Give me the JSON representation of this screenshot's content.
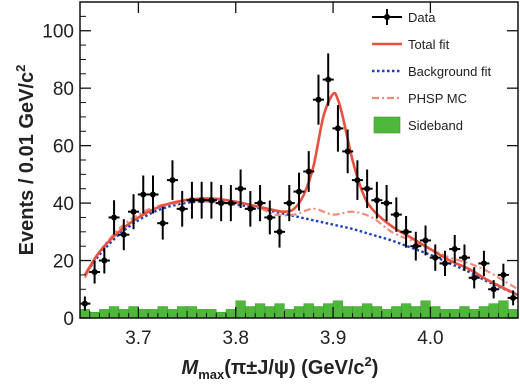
{
  "chart_data": {
    "type": "scatter",
    "xlabel_main": "M",
    "xlabel_sub": "max",
    "xlabel_rest": "(π±J/ψ) (GeV/c",
    "xlabel_sup": "2",
    "xlabel_close": ")",
    "ylabel_main": "Events / 0.01 GeV/c",
    "ylabel_sup": "2",
    "xlim": [
      3.64,
      4.09
    ],
    "ylim": [
      0,
      110
    ],
    "x_ticks": [
      3.7,
      3.8,
      3.9,
      4.0
    ],
    "x_tick_labels": [
      "3.7",
      "3.8",
      "3.9",
      "4.0"
    ],
    "y_ticks": [
      0,
      20,
      40,
      60,
      80,
      100
    ],
    "y_tick_labels": [
      "0",
      "20",
      "40",
      "60",
      "80",
      "100"
    ],
    "legend": {
      "placement": "top-right",
      "entries": [
        {
          "label": "Data",
          "style": "marker",
          "color": "#000000"
        },
        {
          "label": "Total fit",
          "style": "solid",
          "color": "#e8513f"
        },
        {
          "label": "Background fit",
          "style": "dotted",
          "color": "#1a3fbf"
        },
        {
          "label": "PHSP MC",
          "style": "dashdot",
          "color": "#f08a7a"
        },
        {
          "label": "Sideband",
          "style": "fill",
          "color": "#4fb83c"
        }
      ]
    },
    "series": [
      {
        "name": "Data",
        "x": [
          3.645,
          3.655,
          3.665,
          3.675,
          3.685,
          3.695,
          3.705,
          3.715,
          3.725,
          3.735,
          3.745,
          3.755,
          3.765,
          3.775,
          3.785,
          3.795,
          3.805,
          3.815,
          3.825,
          3.835,
          3.845,
          3.855,
          3.865,
          3.875,
          3.885,
          3.895,
          3.905,
          3.915,
          3.925,
          3.935,
          3.945,
          3.955,
          3.965,
          3.975,
          3.985,
          3.995,
          4.005,
          4.015,
          4.025,
          4.035,
          4.045,
          4.055,
          4.065,
          4.075,
          4.085
        ],
        "y": [
          5,
          16,
          20,
          35,
          29,
          37,
          43,
          43,
          33,
          48,
          38,
          41,
          41,
          41,
          40,
          40,
          45,
          38,
          40,
          35,
          30,
          40,
          44,
          51,
          76,
          83,
          66,
          58,
          48,
          45,
          41,
          40,
          36,
          30,
          25,
          27,
          21,
          19,
          24,
          21,
          14,
          19,
          10,
          15,
          7
        ],
        "err": [
          2.5,
          4,
          4.5,
          6,
          5.4,
          6.1,
          6.6,
          6.6,
          5.7,
          6.9,
          6.2,
          6.4,
          6.4,
          6.4,
          6.3,
          6.3,
          6.7,
          6.2,
          6.3,
          5.9,
          5.5,
          6.3,
          6.6,
          7.1,
          8.7,
          9.1,
          8.1,
          7.6,
          6.9,
          6.7,
          6.4,
          6.3,
          6,
          5.5,
          5,
          5.2,
          4.6,
          4.4,
          4.9,
          4.6,
          3.7,
          4.4,
          3.2,
          3.9,
          2.6
        ]
      },
      {
        "name": "Total fit",
        "x": [
          3.645,
          3.66,
          3.68,
          3.7,
          3.72,
          3.74,
          3.76,
          3.78,
          3.8,
          3.82,
          3.84,
          3.85,
          3.86,
          3.87,
          3.88,
          3.89,
          3.9,
          3.905,
          3.91,
          3.92,
          3.93,
          3.94,
          3.96,
          3.98,
          4.0,
          4.02,
          4.04,
          4.06,
          4.09
        ],
        "y": [
          15,
          23,
          30,
          35,
          38.5,
          40.5,
          41.5,
          41.5,
          40.5,
          39,
          37.5,
          37,
          38,
          43,
          53,
          70,
          78,
          76,
          70,
          55,
          44,
          38,
          32,
          28,
          24,
          20,
          17,
          13,
          8
        ]
      },
      {
        "name": "Background fit",
        "x": [
          3.645,
          3.66,
          3.68,
          3.7,
          3.72,
          3.74,
          3.76,
          3.78,
          3.8,
          3.82,
          3.84,
          3.86,
          3.88,
          3.9,
          3.92,
          3.94,
          3.96,
          3.98,
          4.0,
          4.02,
          4.04,
          4.06,
          4.09
        ],
        "y": [
          15,
          22,
          29,
          34,
          37.5,
          39.5,
          40.5,
          40.5,
          39.5,
          38.5,
          37,
          35.5,
          34,
          32.5,
          31,
          29,
          27,
          24.5,
          22,
          19,
          16,
          12.5,
          8
        ]
      },
      {
        "name": "PHSP MC",
        "x": [
          3.645,
          3.66,
          3.68,
          3.7,
          3.72,
          3.74,
          3.76,
          3.78,
          3.8,
          3.82,
          3.84,
          3.86,
          3.88,
          3.9,
          3.92,
          3.94,
          3.96,
          3.98,
          4.0,
          4.02,
          4.04,
          4.06,
          4.09
        ],
        "y": [
          14,
          23,
          31,
          36,
          39,
          40,
          41,
          40,
          40,
          39,
          36,
          36,
          38,
          36,
          37,
          35,
          30,
          27,
          24,
          21,
          19,
          16,
          10
        ]
      },
      {
        "name": "Sideband",
        "x": [
          3.64,
          3.65,
          3.66,
          3.67,
          3.68,
          3.69,
          3.7,
          3.71,
          3.72,
          3.73,
          3.74,
          3.75,
          3.76,
          3.77,
          3.78,
          3.79,
          3.8,
          3.81,
          3.82,
          3.83,
          3.84,
          3.85,
          3.86,
          3.87,
          3.88,
          3.89,
          3.9,
          3.91,
          3.92,
          3.93,
          3.94,
          3.95,
          3.96,
          3.97,
          3.98,
          3.99,
          4.0,
          4.01,
          4.02,
          4.03,
          4.04,
          4.05,
          4.06,
          4.07,
          4.08
        ],
        "y": [
          3,
          2,
          3,
          4,
          3,
          4,
          3,
          3,
          4,
          3,
          4,
          4,
          3,
          3,
          2,
          3,
          6,
          4,
          5,
          4,
          5,
          3,
          4,
          5,
          4,
          5,
          6,
          4,
          4,
          5,
          4,
          3,
          4,
          5,
          4,
          6,
          4,
          3,
          3,
          4,
          3,
          4,
          5,
          6,
          3
        ]
      }
    ]
  }
}
